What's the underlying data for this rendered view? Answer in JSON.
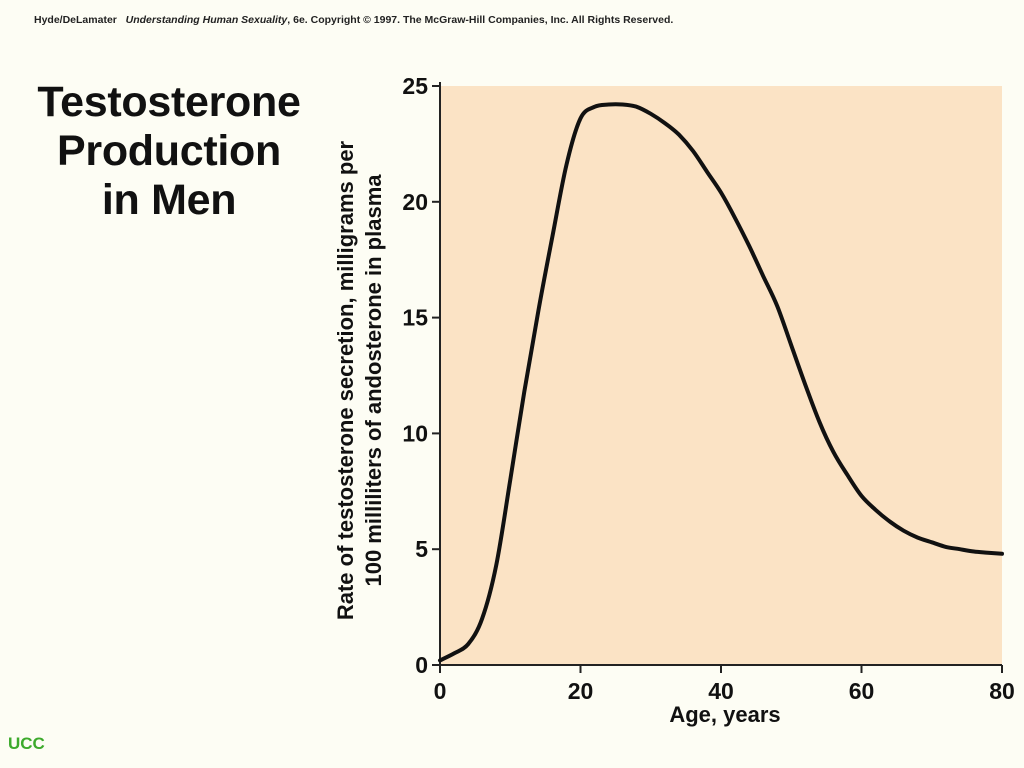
{
  "credit": {
    "authors": "Hyde/DeLamater",
    "book": "Understanding Human Sexuality",
    "rest": ", 6e.  Copyright © 1997. The McGraw-Hill Companies, Inc. All Rights Reserved."
  },
  "title_lines": [
    "Testosterone",
    "Production",
    "in Men"
  ],
  "footer_logo": "UCC",
  "colors": {
    "background": "#fdfdf4",
    "plot_area": "#fbe3c5",
    "curve": "#111111",
    "logo": "#3daa2c"
  },
  "chart_data": {
    "type": "line",
    "title": "Testosterone Production in Men",
    "xlabel": "Age, years",
    "ylabel_lines": [
      "Rate of testosterone secretion, milligrams per",
      "100 milliliters of andosterone in plasma"
    ],
    "xlim": [
      0,
      80
    ],
    "ylim": [
      0,
      25
    ],
    "xticks": [
      0,
      20,
      40,
      60,
      80
    ],
    "yticks": [
      0,
      5,
      10,
      15,
      20,
      25
    ],
    "grid": false,
    "series": [
      {
        "x": [
          0,
          2,
          4,
          6,
          8,
          10,
          12,
          14,
          16,
          18,
          20,
          22,
          24,
          26,
          28,
          30,
          32,
          34,
          36,
          38,
          40,
          42,
          44,
          46,
          48,
          50,
          52,
          54,
          56,
          58,
          60,
          62,
          64,
          66,
          68,
          70,
          72,
          74,
          76,
          78,
          80
        ],
        "y": [
          0.2,
          0.5,
          0.9,
          2.0,
          4.3,
          8.0,
          11.8,
          15.3,
          18.5,
          21.6,
          23.6,
          24.1,
          24.2,
          24.2,
          24.1,
          23.8,
          23.4,
          22.9,
          22.2,
          21.3,
          20.4,
          19.3,
          18.1,
          16.8,
          15.5,
          13.8,
          12.1,
          10.5,
          9.2,
          8.2,
          7.3,
          6.7,
          6.2,
          5.8,
          5.5,
          5.3,
          5.1,
          5.0,
          4.9,
          4.85,
          4.8
        ]
      }
    ]
  }
}
